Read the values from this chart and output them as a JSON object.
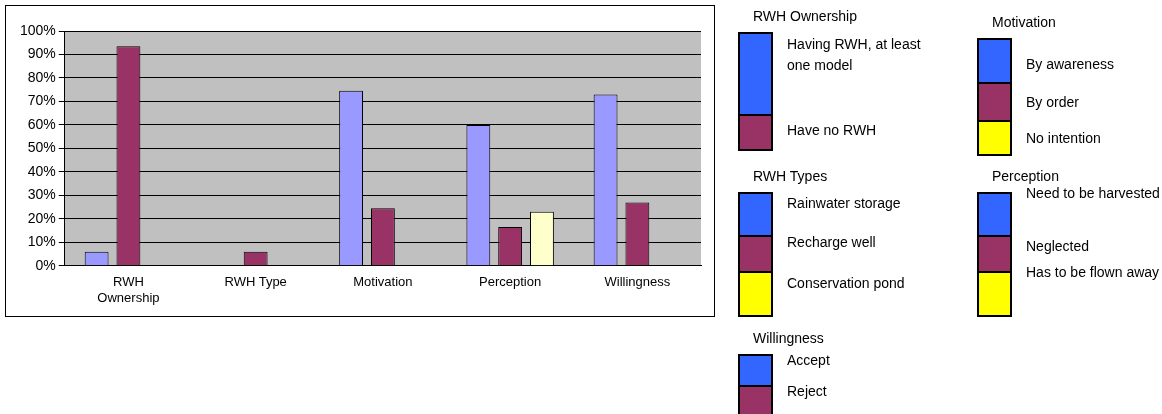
{
  "chart_data": {
    "type": "bar",
    "categories": [
      "RWH Ownership",
      "RWH Type",
      "Motivation",
      "Perception",
      "Willingness"
    ],
    "series": [
      {
        "color": "#9999ff",
        "values": [
          6,
          null,
          74.5,
          60,
          73
        ]
      },
      {
        "color": "#993366",
        "values": [
          93.5,
          6,
          24.5,
          16.5,
          27
        ]
      },
      {
        "color": "#ffffcc",
        "values": [
          null,
          null,
          null,
          23,
          null
        ]
      }
    ],
    "ylim": [
      0,
      100
    ],
    "yticks": [
      {
        "value": 0,
        "label": "0%"
      },
      {
        "value": 10,
        "label": "10%"
      },
      {
        "value": 20,
        "label": "20%"
      },
      {
        "value": 30,
        "label": "30%"
      },
      {
        "value": 40,
        "label": "40%"
      },
      {
        "value": 50,
        "label": "50%"
      },
      {
        "value": 60,
        "label": "60%"
      },
      {
        "value": 70,
        "label": "70%"
      },
      {
        "value": 80,
        "label": "80%"
      },
      {
        "value": 90,
        "label": "90%"
      },
      {
        "value": 100,
        "label": "100%"
      }
    ],
    "grid": "y",
    "legend": false,
    "annotations": [
      "RWH Ownership",
      "Having RWH, at least one model",
      "Have no RWH",
      "RWH Types",
      "Rainwater storage",
      "Recharge well",
      "Conservation pond",
      "Willingness",
      "Accept",
      "Reject",
      "Motivation",
      "By awareness",
      "By order",
      "No intention",
      "Perception",
      "Need to be harvested",
      "Neglected",
      "Has to be flown away"
    ]
  }
}
